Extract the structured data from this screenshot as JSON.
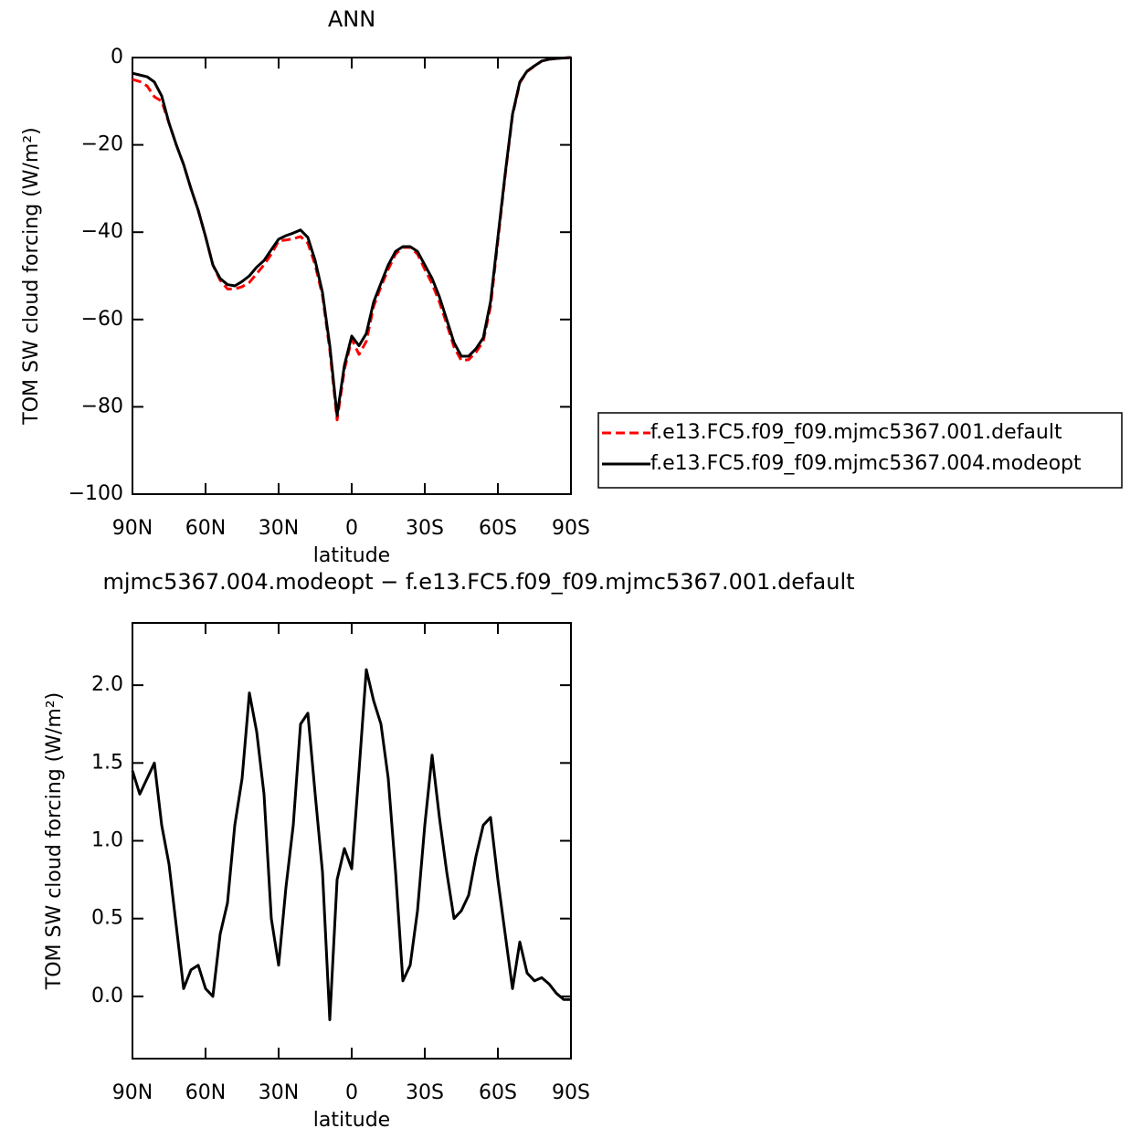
{
  "chart_data": [
    {
      "type": "line",
      "title": "ANN",
      "xlabel": "latitude",
      "ylabel": "TOM SW cloud forcing (W/m²)",
      "x": [
        90,
        87,
        84,
        81,
        78,
        75,
        72,
        69,
        66,
        63,
        60,
        57,
        54,
        51,
        48,
        45,
        42,
        39,
        36,
        33,
        30,
        27,
        24,
        21,
        18,
        15,
        12,
        9,
        6,
        3,
        0,
        -3,
        -6,
        -9,
        -12,
        -15,
        -18,
        -21,
        -24,
        -27,
        -30,
        -33,
        -36,
        -39,
        -42,
        -45,
        -48,
        -51,
        -54,
        -57,
        -60,
        -63,
        -66,
        -69,
        -72,
        -75,
        -78,
        -81,
        -84,
        -87,
        -90
      ],
      "xlim": [
        90,
        -90
      ],
      "xticks": [
        {
          "value": 90,
          "label": "90N"
        },
        {
          "value": 60,
          "label": "60N"
        },
        {
          "value": 30,
          "label": "30N"
        },
        0,
        {
          "value": -30,
          "label": "30S"
        },
        {
          "value": -60,
          "label": "60S"
        },
        {
          "value": -90,
          "label": "90S"
        }
      ],
      "ylim": [
        -100,
        0
      ],
      "yticks": [
        0,
        {
          "value": -20,
          "label": "−20"
        },
        {
          "value": -40,
          "label": "−40"
        },
        {
          "value": -60,
          "label": "−60"
        },
        {
          "value": -80,
          "label": "−80"
        },
        {
          "value": -100,
          "label": "−100"
        }
      ],
      "legend_position": "right",
      "series": [
        {
          "name": "f.e13.FC5.f09_f09.mjmc5367.001.default",
          "color": "#ff0000",
          "style": "dashed",
          "values": [
            -5.0,
            -5.5,
            -6.5,
            -9,
            -10,
            -15,
            -20,
            -24.5,
            -30,
            -35,
            -41,
            -47.5,
            -51,
            -53,
            -53,
            -52.5,
            -51.5,
            -49.5,
            -47.5,
            -45,
            -42,
            -41.8,
            -41.5,
            -41,
            -42.5,
            -47.5,
            -54.5,
            -67,
            -83,
            -71.5,
            -64.5,
            -68,
            -65,
            -57,
            -52.5,
            -48.5,
            -45,
            -43.5,
            -43.5,
            -45,
            -48.5,
            -51.8,
            -56,
            -61,
            -66.3,
            -69.4,
            -69.2,
            -67.5,
            -65,
            -57,
            -42,
            -27,
            -13.3,
            -5.8,
            -3.2,
            -2,
            -0.8,
            -0.4,
            -0.2,
            -0.1,
            0
          ]
        },
        {
          "name": "f.e13.FC5.f09_f09.mjmc5367.004.modeopt",
          "color": "#000000",
          "style": "solid",
          "values": [
            -3.6,
            -4,
            -4.4,
            -5.6,
            -8.8,
            -15,
            -20,
            -24.5,
            -30,
            -35,
            -41,
            -47.5,
            -50.6,
            -52,
            -52.3,
            -51.3,
            -50,
            -48,
            -46.5,
            -44,
            -41.6,
            -40.8,
            -40.2,
            -39.5,
            -41.2,
            -46.5,
            -53.8,
            -66,
            -82,
            -70.5,
            -63.8,
            -66,
            -63.2,
            -56,
            -51.7,
            -47.5,
            -44.4,
            -43.3,
            -43.3,
            -44.4,
            -47.5,
            -50.6,
            -54.8,
            -60,
            -65.3,
            -68.4,
            -68.4,
            -66.7,
            -64.2,
            -55.9,
            -41.2,
            -26.6,
            -13,
            -5.6,
            -3.1,
            -1.9,
            -0.8,
            -0.4,
            -0.2,
            -0.1,
            0
          ]
        }
      ]
    },
    {
      "type": "line",
      "title": "mjmc5367.004.modeopt − f.e13.FC5.f09_f09.mjmc5367.001.default",
      "xlabel": "latitude",
      "ylabel": "TOM SW cloud forcing (W/m²)",
      "x": [
        90,
        87,
        84,
        81,
        78,
        75,
        72,
        69,
        66,
        63,
        60,
        57,
        54,
        51,
        48,
        45,
        42,
        39,
        36,
        33,
        30,
        27,
        24,
        21,
        18,
        15,
        12,
        9,
        6,
        3,
        0,
        -3,
        -6,
        -9,
        -12,
        -15,
        -18,
        -21,
        -24,
        -27,
        -30,
        -33,
        -36,
        -39,
        -42,
        -45,
        -48,
        -51,
        -54,
        -57,
        -60,
        -63,
        -66,
        -69,
        -72,
        -75,
        -78,
        -81,
        -84,
        -87,
        -90
      ],
      "xlim": [
        90,
        -90
      ],
      "xticks": [
        {
          "value": 90,
          "label": "90N"
        },
        {
          "value": 60,
          "label": "60N"
        },
        {
          "value": 30,
          "label": "30N"
        },
        0,
        {
          "value": -30,
          "label": "30S"
        },
        {
          "value": -60,
          "label": "60S"
        },
        {
          "value": -90,
          "label": "90S"
        }
      ],
      "ylim": [
        -0.4,
        2.4
      ],
      "yticks": [
        {
          "value": 0,
          "label": "0.0"
        },
        0.5,
        {
          "value": 1,
          "label": "1.0"
        },
        1.5,
        {
          "value": 2,
          "label": "2.0"
        }
      ],
      "series": [
        {
          "color": "#000000",
          "style": "solid",
          "values": [
            1.45,
            1.3,
            1.4,
            1.5,
            1.1,
            0.85,
            0.45,
            0.05,
            0.17,
            0.2,
            0.05,
            0.0,
            0.4,
            0.6,
            1.1,
            1.4,
            1.95,
            1.7,
            1.3,
            0.5,
            0.2,
            0.7,
            1.1,
            1.75,
            1.82,
            1.3,
            0.8,
            -0.15,
            0.75,
            0.95,
            0.82,
            1.45,
            2.1,
            1.9,
            1.75,
            1.4,
            0.8,
            0.1,
            0.2,
            0.55,
            1.1,
            1.55,
            1.15,
            0.8,
            0.5,
            0.55,
            0.65,
            0.9,
            1.1,
            1.15,
            0.75,
            0.4,
            0.05,
            0.35,
            0.15,
            0.1,
            0.12,
            0.08,
            0.02,
            -0.02,
            -0.02
          ]
        }
      ]
    }
  ]
}
